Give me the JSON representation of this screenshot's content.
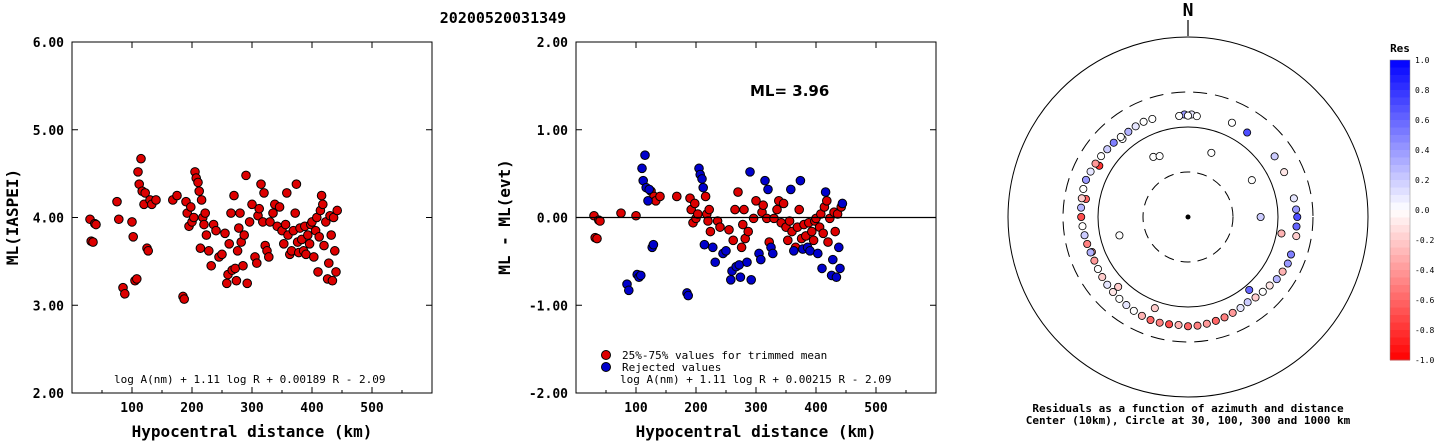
{
  "title": "20200520031349",
  "colors": {
    "red": "#dd0000",
    "blue": "#0000cc"
  },
  "chart_data": [
    {
      "type": "scatter",
      "name": "left",
      "xlabel": "Hypocentral distance (km)",
      "ylabel": "ML(IASPEI)",
      "xlim": [
        0,
        600
      ],
      "ylim": [
        2.0,
        6.0
      ],
      "xticks": [
        "100",
        "200",
        "300",
        "400",
        "500"
      ],
      "yticks": [
        "2.00",
        "3.00",
        "4.00",
        "5.00",
        "6.00"
      ],
      "formula": "log A(nm) + 1.11 log R + 0.00189 R - 2.09",
      "points": [
        [
          30,
          3.98
        ],
        [
          32,
          3.73
        ],
        [
          35,
          3.72
        ],
        [
          38,
          3.93
        ],
        [
          40,
          3.92
        ],
        [
          75,
          4.18
        ],
        [
          78,
          3.98
        ],
        [
          85,
          3.2
        ],
        [
          88,
          3.13
        ],
        [
          100,
          3.95
        ],
        [
          102,
          3.78
        ],
        [
          105,
          3.28
        ],
        [
          108,
          3.3
        ],
        [
          110,
          4.52
        ],
        [
          112,
          4.38
        ],
        [
          115,
          4.67
        ],
        [
          117,
          4.3
        ],
        [
          120,
          4.15
        ],
        [
          122,
          4.28
        ],
        [
          125,
          3.65
        ],
        [
          127,
          3.62
        ],
        [
          130,
          4.2
        ],
        [
          133,
          4.15
        ],
        [
          140,
          4.2
        ],
        [
          168,
          4.2
        ],
        [
          175,
          4.25
        ],
        [
          185,
          3.1
        ],
        [
          187,
          3.07
        ],
        [
          190,
          4.18
        ],
        [
          192,
          4.05
        ],
        [
          195,
          3.9
        ],
        [
          198,
          4.12
        ],
        [
          200,
          3.95
        ],
        [
          203,
          4.0
        ],
        [
          205,
          4.52
        ],
        [
          207,
          4.45
        ],
        [
          210,
          4.4
        ],
        [
          212,
          4.3
        ],
        [
          214,
          3.65
        ],
        [
          216,
          4.2
        ],
        [
          218,
          4.0
        ],
        [
          220,
          3.92
        ],
        [
          222,
          4.05
        ],
        [
          224,
          3.8
        ],
        [
          228,
          3.62
        ],
        [
          232,
          3.45
        ],
        [
          236,
          3.92
        ],
        [
          240,
          3.85
        ],
        [
          245,
          3.55
        ],
        [
          250,
          3.58
        ],
        [
          255,
          3.82
        ],
        [
          258,
          3.25
        ],
        [
          260,
          3.35
        ],
        [
          262,
          3.7
        ],
        [
          265,
          4.05
        ],
        [
          267,
          3.4
        ],
        [
          270,
          4.25
        ],
        [
          272,
          3.42
        ],
        [
          274,
          3.28
        ],
        [
          276,
          3.62
        ],
        [
          278,
          3.88
        ],
        [
          280,
          4.05
        ],
        [
          282,
          3.72
        ],
        [
          285,
          3.45
        ],
        [
          287,
          3.8
        ],
        [
          290,
          4.48
        ],
        [
          292,
          3.25
        ],
        [
          296,
          3.95
        ],
        [
          300,
          4.15
        ],
        [
          305,
          3.55
        ],
        [
          308,
          3.48
        ],
        [
          310,
          4.02
        ],
        [
          312,
          4.1
        ],
        [
          315,
          4.38
        ],
        [
          318,
          3.95
        ],
        [
          320,
          4.28
        ],
        [
          322,
          3.68
        ],
        [
          325,
          3.62
        ],
        [
          328,
          3.55
        ],
        [
          330,
          3.95
        ],
        [
          335,
          4.05
        ],
        [
          338,
          4.15
        ],
        [
          342,
          3.9
        ],
        [
          346,
          4.12
        ],
        [
          350,
          3.85
        ],
        [
          353,
          3.7
        ],
        [
          356,
          3.92
        ],
        [
          358,
          4.28
        ],
        [
          360,
          3.8
        ],
        [
          363,
          3.58
        ],
        [
          366,
          3.62
        ],
        [
          369,
          3.85
        ],
        [
          372,
          4.05
        ],
        [
          374,
          4.38
        ],
        [
          376,
          3.72
        ],
        [
          378,
          3.6
        ],
        [
          380,
          3.88
        ],
        [
          383,
          3.75
        ],
        [
          386,
          3.62
        ],
        [
          388,
          3.9
        ],
        [
          390,
          3.58
        ],
        [
          393,
          3.8
        ],
        [
          396,
          3.7
        ],
        [
          398,
          3.92
        ],
        [
          400,
          3.95
        ],
        [
          403,
          3.55
        ],
        [
          406,
          3.85
        ],
        [
          408,
          4.0
        ],
        [
          410,
          3.38
        ],
        [
          412,
          3.78
        ],
        [
          414,
          4.08
        ],
        [
          416,
          4.25
        ],
        [
          418,
          4.15
        ],
        [
          420,
          3.68
        ],
        [
          423,
          3.95
        ],
        [
          426,
          3.3
        ],
        [
          428,
          3.48
        ],
        [
          430,
          4.02
        ],
        [
          432,
          3.8
        ],
        [
          434,
          3.28
        ],
        [
          436,
          4.0
        ],
        [
          438,
          3.62
        ],
        [
          440,
          3.38
        ],
        [
          442,
          4.08
        ]
      ]
    },
    {
      "type": "scatter",
      "name": "middle",
      "xlabel": "Hypocentral distance (km)",
      "ylabel": "ML - ML(evt)",
      "xlim": [
        0,
        600
      ],
      "ylim": [
        -2.0,
        2.0
      ],
      "xticks": [
        "100",
        "200",
        "300",
        "400",
        "500"
      ],
      "yticks": [
        "-2.00",
        "-1.00",
        "0.00",
        "1.00",
        "2.00"
      ],
      "ml_label": "ML= 3.96",
      "formula": "log A(nm) + 1.11 log R + 0.00215 R - 2.09",
      "legend": [
        "25%-75% values for trimmed mean",
        "Rejected values"
      ],
      "red_points": [
        [
          30,
          0.02
        ],
        [
          32,
          -0.23
        ],
        [
          35,
          -0.24
        ],
        [
          38,
          -0.03
        ],
        [
          40,
          -0.04
        ],
        [
          75,
          0.05
        ],
        [
          100,
          0.02
        ],
        [
          125,
          0.3
        ],
        [
          130,
          0.24
        ],
        [
          133,
          0.19
        ],
        [
          140,
          0.24
        ],
        [
          168,
          0.24
        ],
        [
          190,
          0.22
        ],
        [
          192,
          0.09
        ],
        [
          195,
          -0.06
        ],
        [
          198,
          0.16
        ],
        [
          200,
          -0.01
        ],
        [
          203,
          0.04
        ],
        [
          216,
          0.24
        ],
        [
          218,
          0.04
        ],
        [
          220,
          -0.04
        ],
        [
          222,
          0.09
        ],
        [
          224,
          -0.16
        ],
        [
          236,
          -0.04
        ],
        [
          240,
          -0.11
        ],
        [
          255,
          -0.14
        ],
        [
          262,
          -0.26
        ],
        [
          265,
          0.09
        ],
        [
          270,
          0.29
        ],
        [
          276,
          -0.34
        ],
        [
          278,
          -0.08
        ],
        [
          280,
          0.09
        ],
        [
          282,
          -0.24
        ],
        [
          287,
          -0.16
        ],
        [
          296,
          -0.01
        ],
        [
          300,
          0.19
        ],
        [
          310,
          0.06
        ],
        [
          312,
          0.14
        ],
        [
          318,
          -0.01
        ],
        [
          322,
          -0.28
        ],
        [
          330,
          -0.01
        ],
        [
          335,
          0.09
        ],
        [
          338,
          0.19
        ],
        [
          342,
          -0.06
        ],
        [
          346,
          0.16
        ],
        [
          350,
          -0.11
        ],
        [
          353,
          -0.26
        ],
        [
          356,
          -0.04
        ],
        [
          360,
          -0.16
        ],
        [
          366,
          -0.34
        ],
        [
          369,
          -0.11
        ],
        [
          372,
          0.09
        ],
        [
          376,
          -0.24
        ],
        [
          380,
          -0.08
        ],
        [
          383,
          -0.21
        ],
        [
          388,
          -0.06
        ],
        [
          393,
          -0.16
        ],
        [
          396,
          -0.26
        ],
        [
          398,
          -0.04
        ],
        [
          400,
          -0.01
        ],
        [
          406,
          -0.11
        ],
        [
          408,
          0.04
        ],
        [
          412,
          -0.18
        ],
        [
          414,
          0.12
        ],
        [
          418,
          0.19
        ],
        [
          420,
          -0.28
        ],
        [
          423,
          -0.01
        ],
        [
          430,
          0.06
        ],
        [
          432,
          -0.16
        ],
        [
          436,
          0.04
        ],
        [
          442,
          0.12
        ]
      ],
      "blue_points": [
        [
          85,
          -0.76
        ],
        [
          88,
          -0.83
        ],
        [
          102,
          -0.65
        ],
        [
          105,
          -0.68
        ],
        [
          108,
          -0.66
        ],
        [
          110,
          0.56
        ],
        [
          112,
          0.42
        ],
        [
          115,
          0.71
        ],
        [
          117,
          0.34
        ],
        [
          120,
          0.19
        ],
        [
          122,
          0.32
        ],
        [
          127,
          -0.34
        ],
        [
          129,
          -0.31
        ],
        [
          185,
          -0.86
        ],
        [
          187,
          -0.89
        ],
        [
          205,
          0.56
        ],
        [
          207,
          0.49
        ],
        [
          210,
          0.44
        ],
        [
          212,
          0.34
        ],
        [
          214,
          -0.31
        ],
        [
          228,
          -0.34
        ],
        [
          232,
          -0.51
        ],
        [
          245,
          -0.41
        ],
        [
          250,
          -0.38
        ],
        [
          258,
          -0.71
        ],
        [
          260,
          -0.61
        ],
        [
          267,
          -0.56
        ],
        [
          272,
          -0.54
        ],
        [
          274,
          -0.68
        ],
        [
          285,
          -0.51
        ],
        [
          290,
          0.52
        ],
        [
          292,
          -0.71
        ],
        [
          305,
          -0.41
        ],
        [
          308,
          -0.48
        ],
        [
          315,
          0.42
        ],
        [
          320,
          0.32
        ],
        [
          325,
          -0.34
        ],
        [
          328,
          -0.41
        ],
        [
          358,
          0.32
        ],
        [
          363,
          -0.38
        ],
        [
          374,
          0.42
        ],
        [
          378,
          -0.36
        ],
        [
          386,
          -0.34
        ],
        [
          390,
          -0.38
        ],
        [
          403,
          -0.41
        ],
        [
          410,
          -0.58
        ],
        [
          416,
          0.29
        ],
        [
          426,
          -0.66
        ],
        [
          428,
          -0.48
        ],
        [
          434,
          -0.68
        ],
        [
          438,
          -0.34
        ],
        [
          440,
          -0.58
        ],
        [
          444,
          0.16
        ]
      ]
    },
    {
      "type": "polar-scatter",
      "name": "azimuth",
      "north_label": "N",
      "colorbar_title": "Res",
      "colorbar_ticks": [
        "1.0",
        "0.8",
        "0.6",
        "0.4",
        "0.2",
        "0.0",
        "-0.2",
        "-0.4",
        "-0.6",
        "-0.8",
        "-1.0"
      ],
      "caption_line1": "Residuals as a function of azimuth and distance",
      "caption_line2": "Center (10km), Circle at 30, 100, 300 and 1000 km",
      "stations": [
        [
          20,
          60,
          0.0
        ],
        [
          60,
          70,
          0.0
        ],
        [
          90,
          68,
          0.2
        ],
        [
          255,
          65,
          0.0
        ],
        [
          330,
          62,
          0.0
        ],
        [
          335,
          58,
          0.0
        ],
        [
          100,
          128,
          -0.3
        ],
        [
          140,
          130,
          0.6
        ],
        [
          200,
          140,
          -0.2
        ],
        [
          225,
          150,
          -0.2
        ],
        [
          250,
          170,
          -0.4
        ],
        [
          280,
          178,
          -0.6
        ],
        [
          300,
          171,
          -0.8
        ],
        [
          320,
          168,
          0.0
        ],
        [
          358,
          172,
          0.4
        ],
        [
          2,
          172,
          0.1
        ],
        [
          0,
          165,
          0.0
        ],
        [
          5,
          164,
          0.0
        ],
        [
          355,
          165,
          0.0
        ],
        [
          25,
          180,
          0.0
        ],
        [
          35,
          175,
          0.7
        ],
        [
          55,
          190,
          0.2
        ],
        [
          65,
          192,
          -0.1
        ],
        [
          80,
          200,
          0.1
        ],
        [
          86,
          205,
          0.4
        ],
        [
          90,
          210,
          0.7
        ],
        [
          95,
          208,
          0.6
        ],
        [
          100,
          214,
          -0.2
        ],
        [
          110,
          212,
          0.5
        ],
        [
          115,
          215,
          0.4
        ],
        [
          120,
          210,
          -0.3
        ],
        [
          125,
          205,
          0.3
        ],
        [
          130,
          195,
          -0.1
        ],
        [
          135,
          190,
          0.0
        ],
        [
          140,
          186,
          -0.2
        ],
        [
          145,
          180,
          0.2
        ],
        [
          150,
          186,
          0.1
        ],
        [
          155,
          190,
          -0.4
        ],
        [
          160,
          196,
          -0.5
        ],
        [
          165,
          200,
          -0.6
        ],
        [
          170,
          205,
          -0.4
        ],
        [
          175,
          209,
          -0.5
        ],
        [
          180,
          210,
          -0.6
        ],
        [
          185,
          205,
          -0.3
        ],
        [
          190,
          208,
          -0.7
        ],
        [
          195,
          211,
          -0.5
        ],
        [
          200,
          212,
          -0.6
        ],
        [
          205,
          209,
          -0.3
        ],
        [
          210,
          205,
          0.0
        ],
        [
          215,
          200,
          0.1
        ],
        [
          220,
          196,
          0.0
        ],
        [
          225,
          192,
          -0.1
        ],
        [
          230,
          188,
          0.1
        ],
        [
          235,
          184,
          -0.2
        ],
        [
          240,
          180,
          0.0
        ],
        [
          245,
          176,
          -0.4
        ],
        [
          250,
          178,
          0.3
        ],
        [
          255,
          182,
          -0.5
        ],
        [
          260,
          186,
          0.2
        ],
        [
          265,
          191,
          0.0
        ],
        [
          270,
          196,
          -0.7
        ],
        [
          275,
          199,
          0.3
        ],
        [
          280,
          202,
          -0.2
        ],
        [
          285,
          205,
          0.0
        ],
        [
          290,
          206,
          0.4
        ],
        [
          295,
          200,
          0.1
        ],
        [
          300,
          196,
          -0.4
        ],
        [
          305,
          192,
          0.0
        ],
        [
          310,
          188,
          0.2
        ],
        [
          315,
          186,
          0.5
        ],
        [
          320,
          183,
          0.0
        ],
        [
          325,
          180,
          0.3
        ],
        [
          330,
          184,
          0.1
        ],
        [
          335,
          186,
          0.0
        ],
        [
          340,
          182,
          0.0
        ]
      ]
    }
  ]
}
